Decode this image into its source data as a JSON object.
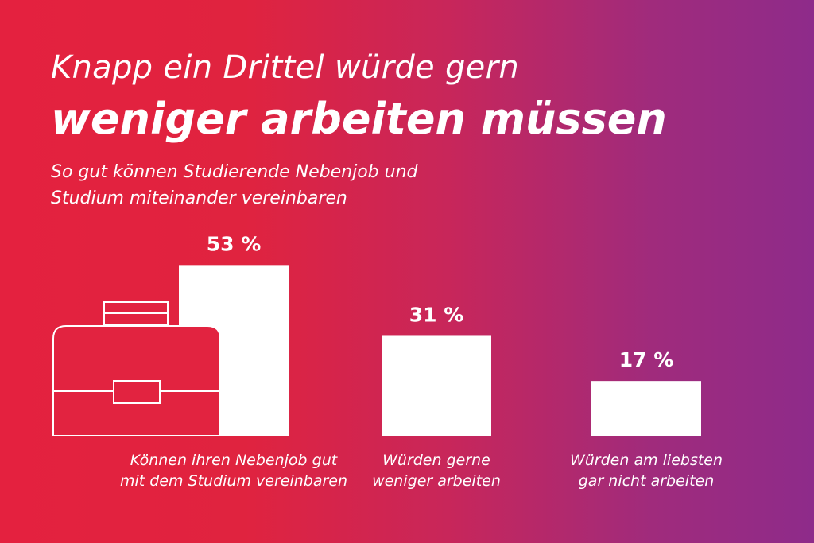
{
  "title_line1": "Knapp ein Drittel würde gern",
  "title_line2": "weniger arbeiten müssen",
  "subtitle_line1": "So gut können Studierende Nebenjob und",
  "subtitle_line2": "Studium miteinander vereinbaren",
  "colors": {
    "bar": "#ffffff",
    "background_start": "#e4213f",
    "background_end": "#8e2b8a"
  },
  "icon": "briefcase-icon",
  "chart_data": {
    "type": "bar",
    "unit": "%",
    "ylim": [
      0,
      100
    ],
    "grid": false,
    "categories": [
      [
        "Können ihren Nebenjob gut",
        "mit dem Studium vereinbaren"
      ],
      [
        "Würden gerne",
        "weniger arbeiten"
      ],
      [
        "Würden am liebsten",
        "gar nicht arbeiten"
      ]
    ],
    "values": [
      53,
      31,
      17
    ],
    "value_labels": [
      "53 %",
      "31 %",
      "17 %"
    ]
  }
}
